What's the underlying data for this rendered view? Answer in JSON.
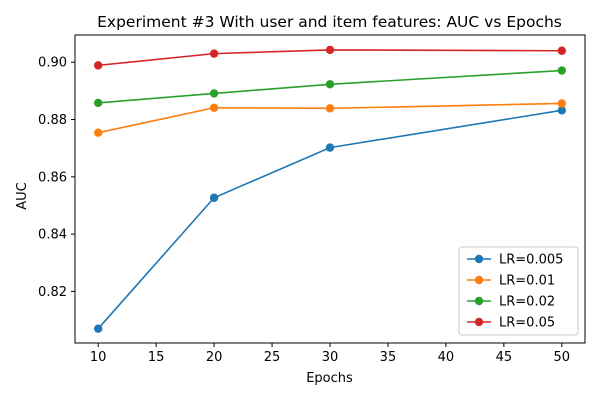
{
  "chart_data": {
    "type": "line",
    "title": "Experiment #3 With user and item features: AUC vs Epochs",
    "xlabel": "Epochs",
    "ylabel": "AUC",
    "x": [
      10,
      20,
      30,
      50
    ],
    "xlim": [
      8,
      52
    ],
    "ylim": [
      0.802,
      0.9095
    ],
    "xticks": [
      10,
      15,
      20,
      25,
      30,
      35,
      40,
      45,
      50
    ],
    "yticks": [
      0.82,
      0.84,
      0.86,
      0.88,
      0.9
    ],
    "grid": false,
    "legend_position": "bottom-right",
    "series": [
      {
        "name": "LR=0.005",
        "color": "#1f77b4",
        "values": [
          0.807,
          0.8527,
          0.8702,
          0.8832
        ]
      },
      {
        "name": "LR=0.01",
        "color": "#ff7f0e",
        "values": [
          0.8754,
          0.8841,
          0.8839,
          0.8856
        ]
      },
      {
        "name": "LR=0.02",
        "color": "#2ca02c",
        "values": [
          0.8858,
          0.8891,
          0.8923,
          0.8971
        ]
      },
      {
        "name": "LR=0.05",
        "color": "#d62728",
        "values": [
          0.8989,
          0.903,
          0.9043,
          0.904
        ]
      }
    ]
  }
}
